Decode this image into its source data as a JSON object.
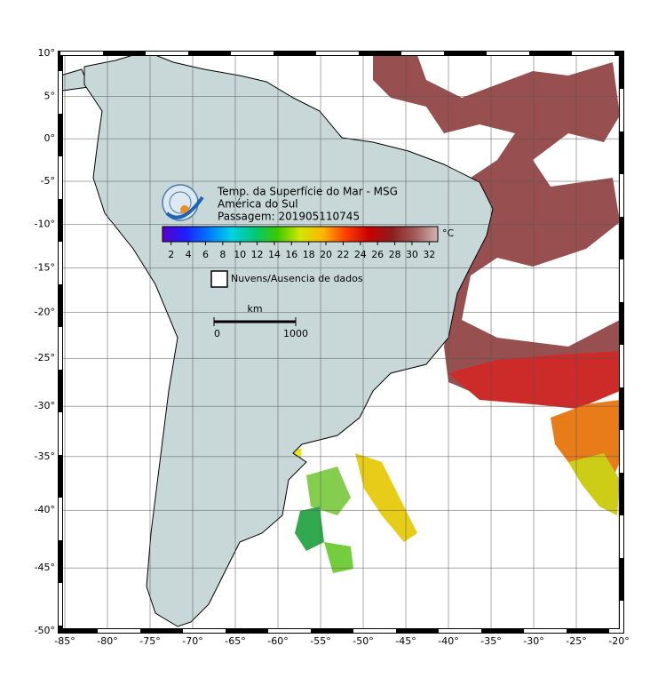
{
  "header": {
    "lines": [
      "Temp. da Superfície do Mar - MSG",
      "América do Sul",
      "Passagem: 201905110745"
    ]
  },
  "colorbar": {
    "range": [
      1,
      33
    ],
    "ticks": [
      2,
      4,
      6,
      8,
      10,
      12,
      14,
      16,
      18,
      20,
      22,
      24,
      26,
      28,
      30,
      32
    ],
    "unit": "°C",
    "colormap": [
      "#5a00c8",
      "#1e1eff",
      "#0078ff",
      "#00d2e6",
      "#00c878",
      "#3cc800",
      "#d2e600",
      "#ffb400",
      "#ff3c00",
      "#c80000",
      "#8c1e1e",
      "#a05a5a",
      "#d2b4b4"
    ]
  },
  "legend": {
    "label": "Nuvens/Ausencia de dados"
  },
  "scale_bar": {
    "unit": "km",
    "ticks": [
      0,
      1000
    ]
  },
  "lat_ticks": [
    {
      "value": 10,
      "label": "10°"
    },
    {
      "value": 5,
      "label": "5°"
    },
    {
      "value": 0,
      "label": "0°"
    },
    {
      "value": -5,
      "label": "-5°"
    },
    {
      "value": -10,
      "label": "-10°"
    },
    {
      "value": -15,
      "label": "-15°"
    },
    {
      "value": -20,
      "label": "-20°"
    },
    {
      "value": -25,
      "label": "-25°"
    },
    {
      "value": -30,
      "label": "-30°"
    },
    {
      "value": -35,
      "label": "-35°"
    },
    {
      "value": -40,
      "label": "-40°"
    },
    {
      "value": -45,
      "label": "-45°"
    },
    {
      "value": -50,
      "label": "-50°"
    }
  ],
  "lon_ticks": [
    {
      "value": -85,
      "label": "-85°"
    },
    {
      "value": -80,
      "label": "-80°"
    },
    {
      "value": -75,
      "label": "-75°"
    },
    {
      "value": -70,
      "label": "-70°"
    },
    {
      "value": -65,
      "label": "-65°"
    },
    {
      "value": -60,
      "label": "-60°"
    },
    {
      "value": -55,
      "label": "-55°"
    },
    {
      "value": -50,
      "label": "-50°"
    },
    {
      "value": -45,
      "label": "-45°"
    },
    {
      "value": -40,
      "label": "-40°"
    },
    {
      "value": -35,
      "label": "-35°"
    },
    {
      "value": -30,
      "label": "-30°"
    },
    {
      "value": -25,
      "label": "-25°"
    },
    {
      "value": -20,
      "label": "-20°"
    }
  ]
}
